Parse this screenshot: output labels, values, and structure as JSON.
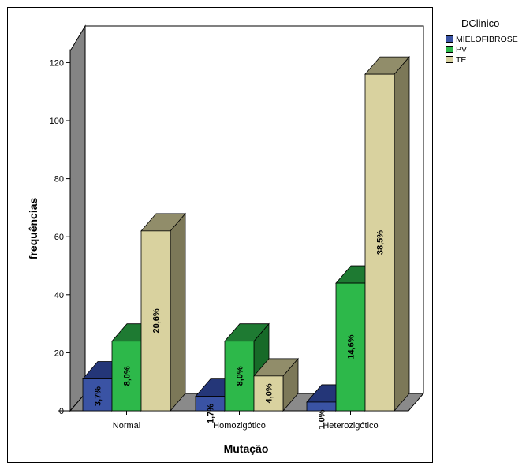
{
  "chart_data": {
    "type": "bar",
    "style": "3d-clustered",
    "categories": [
      "Normal",
      "Homozigótico",
      "Heterozigótico"
    ],
    "series": [
      {
        "name": "MIELOFIBROSE",
        "values": [
          11,
          5,
          3
        ],
        "labels": [
          "3,7%",
          "1,7%",
          "1,0%"
        ]
      },
      {
        "name": "PV",
        "values": [
          24,
          24,
          44
        ],
        "labels": [
          "8,0%",
          "8,0%",
          "14,6%"
        ]
      },
      {
        "name": "TE",
        "values": [
          62,
          12,
          116
        ],
        "labels": [
          "20,6%",
          "4,0%",
          "38,5%"
        ]
      }
    ],
    "xlabel": "Mutação",
    "ylabel": "frequências",
    "yticks": [
      0,
      20,
      40,
      60,
      80,
      100,
      120
    ],
    "ylim": [
      0,
      130
    ],
    "legend_title": "DClinico",
    "legend_position": "top-right",
    "grid": false
  },
  "colors": {
    "MIELOFIBROSE": {
      "front": "#3a53a4",
      "top": "#243678",
      "side": "#1d2d62"
    },
    "PV": {
      "front": "#2db84a",
      "top": "#1e7a32",
      "side": "#176a28"
    },
    "TE": {
      "front": "#d9d29f",
      "top": "#918d6a",
      "side": "#7c7858"
    },
    "wall_side": "#848484",
    "wall_back": "#ffffff",
    "floor": "#8a8a8a"
  }
}
